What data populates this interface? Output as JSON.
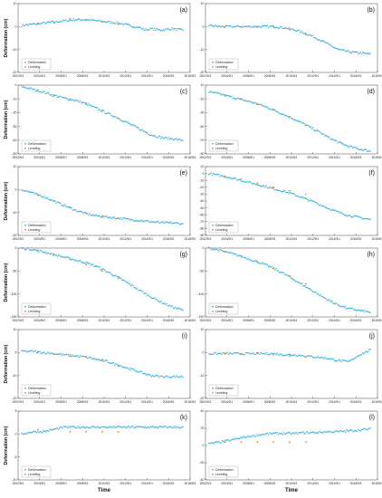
{
  "chart_data": [
    {
      "label": "(a)",
      "type": "scatter",
      "ylabel": "Deformation (cm)",
      "ylim": [
        -20,
        10
      ],
      "yticks": [
        10,
        0,
        -10,
        -20
      ],
      "xticks": [
        "2002/9/1",
        "2004/9/1",
        "2006/9/1",
        "2008/9/1",
        "2010/9/1",
        "2012/9/1",
        "2014/9/1",
        "2016/9/1",
        "2018/9/1"
      ],
      "legend": [
        "Deformation",
        "Leveling"
      ],
      "series": [
        {
          "name": "Deformation",
          "x": [
            2003.0,
            2004.0,
            2005.0,
            2006.0,
            2007.0,
            2008.0,
            2009.0,
            2010.0,
            2011.0,
            2012.0,
            2013.0,
            2014.0,
            2014.5,
            2015.0,
            2016.0,
            2017.0,
            2018.0
          ],
          "y": [
            0.5,
            1.0,
            1.5,
            2.0,
            2.5,
            3.0,
            3.0,
            2.5,
            2.0,
            1.5,
            0.5,
            -0.5,
            -1.5,
            -1.0,
            -1.5,
            -1.0,
            -1.5
          ]
        },
        {
          "name": "Leveling",
          "x": [
            2004.5,
            2006.0,
            2007.5,
            2009.0,
            2010.5,
            2012.0
          ],
          "y": [
            1.0,
            1.5,
            3.5,
            3.0,
            2.0,
            1.0
          ]
        }
      ]
    },
    {
      "label": "(b)",
      "type": "scatter",
      "ylabel": "",
      "ylim": [
        -20,
        10
      ],
      "yticks": [
        10,
        0,
        -10,
        -20
      ],
      "xticks": [
        "2002/9/1",
        "2004/9/1",
        "2006/9/1",
        "2008/9/1",
        "2010/9/1",
        "2012/9/1",
        "2014/9/1",
        "2016/9/1",
        "2018/9/1"
      ],
      "legend": [
        "Deformation",
        "Leveling"
      ],
      "series": [
        {
          "name": "Deformation",
          "x": [
            2003.0,
            2004.0,
            2005.0,
            2006.0,
            2007.0,
            2008.0,
            2009.0,
            2010.0,
            2011.0,
            2012.0,
            2013.0,
            2014.0,
            2015.0,
            2016.0,
            2017.0,
            2018.0
          ],
          "y": [
            0.5,
            0.0,
            0.0,
            0.0,
            0.0,
            0.0,
            0.0,
            -0.5,
            -1.5,
            -3.0,
            -5.0,
            -7.5,
            -10.0,
            -11.0,
            -11.5,
            -12.0
          ]
        },
        {
          "name": "Leveling",
          "x": [
            2004.5,
            2006.0,
            2007.5,
            2009.0,
            2010.5,
            2012.0
          ],
          "y": [
            0.0,
            0.0,
            0.0,
            0.0,
            -1.5,
            -3.5
          ]
        }
      ]
    },
    {
      "label": "(c)",
      "type": "scatter",
      "ylabel": "Deformation (cm)",
      "ylim": [
        -50,
        0
      ],
      "yticks": [
        0,
        -10,
        -20,
        -30,
        -40,
        -50
      ],
      "xticks": [
        "2002/9/1",
        "2004/9/1",
        "2006/9/1",
        "2008/9/1",
        "2010/9/1",
        "2012/9/1",
        "2014/9/1",
        "2016/9/1",
        "2018/9/1"
      ],
      "legend": [
        "Deformation",
        "Leveling"
      ],
      "series": [
        {
          "name": "Deformation",
          "x": [
            2003.0,
            2004.0,
            2005.0,
            2006.0,
            2007.0,
            2008.0,
            2009.0,
            2010.0,
            2011.0,
            2012.0,
            2013.0,
            2014.0,
            2015.0,
            2016.0,
            2017.0,
            2018.0
          ],
          "y": [
            -1.0,
            -3.0,
            -5.0,
            -7.5,
            -9.5,
            -11.0,
            -13.5,
            -17.0,
            -20.5,
            -24.0,
            -28.0,
            -32.0,
            -36.0,
            -38.0,
            -39.0,
            -40.0
          ]
        },
        {
          "name": "Leveling",
          "x": [
            2004.5,
            2006.0,
            2007.5,
            2009.0,
            2010.5,
            2012.0
          ],
          "y": [
            -4.0,
            -7.5,
            -10.0,
            -14.0,
            -18.0,
            -24.0
          ]
        }
      ]
    },
    {
      "label": "(d)",
      "type": "scatter",
      "ylabel": "",
      "ylim": [
        -90,
        10
      ],
      "yticks": [
        10,
        -10,
        -30,
        -50,
        -70,
        -90
      ],
      "xticks": [
        "2002/9/1",
        "2004/9/1",
        "2006/9/1",
        "2008/9/1",
        "2010/9/1",
        "2012/9/1",
        "2014/9/1",
        "2016/9/1",
        "2018/9/1"
      ],
      "legend": [
        "Deformation",
        "Leveling"
      ],
      "series": [
        {
          "name": "Deformation",
          "x": [
            2003.0,
            2004.0,
            2005.0,
            2006.0,
            2007.0,
            2008.0,
            2009.0,
            2010.0,
            2011.0,
            2012.0,
            2013.0,
            2014.0,
            2015.0,
            2016.0,
            2017.0,
            2018.0
          ],
          "y": [
            0.0,
            -3.0,
            -7.0,
            -11.0,
            -15.0,
            -20.0,
            -26.0,
            -33.0,
            -40.0,
            -48.0,
            -56.0,
            -65.0,
            -73.0,
            -79.0,
            -83.0,
            -86.0
          ]
        },
        {
          "name": "Leveling",
          "x": [
            2004.5,
            2006.0,
            2007.5,
            2009.0,
            2010.5,
            2012.0
          ],
          "y": [
            -5.0,
            -11.0,
            -17.0,
            -26.0,
            -36.0,
            -48.0
          ]
        }
      ]
    },
    {
      "label": "(e)",
      "type": "scatter",
      "ylabel": "Deformation (cm)",
      "ylim": [
        -20,
        10
      ],
      "yticks": [
        10,
        0,
        -10,
        -20
      ],
      "xticks": [
        "2002/9/1",
        "2004/9/1",
        "2006/9/1",
        "2008/9/1",
        "2010/9/1",
        "2012/9/1",
        "2014/9/1",
        "2016/9/1",
        "2018/9/1"
      ],
      "legend": [
        "Deformation",
        "Leveling"
      ],
      "series": [
        {
          "name": "Deformation",
          "x": [
            2003.0,
            2004.0,
            2005.0,
            2006.0,
            2007.0,
            2008.0,
            2009.0,
            2010.0,
            2011.0,
            2012.0,
            2013.0,
            2014.0,
            2015.0,
            2016.0,
            2017.0,
            2018.0
          ],
          "y": [
            0.0,
            -1.5,
            -3.0,
            -5.0,
            -7.0,
            -9.0,
            -10.5,
            -11.5,
            -12.0,
            -12.5,
            -13.0,
            -13.5,
            -14.0,
            -14.5,
            -14.5,
            -15.0
          ]
        },
        {
          "name": "Leveling",
          "x": [
            2004.5,
            2006.0,
            2007.5,
            2009.0,
            2010.5,
            2012.0
          ],
          "y": [
            -2.5,
            -5.0,
            -8.0,
            -10.5,
            -11.5,
            -12.5
          ]
        }
      ]
    },
    {
      "label": "(f)",
      "type": "scatter",
      "ylabel": "",
      "ylim": [
        -90,
        10
      ],
      "yticks": [
        10,
        0,
        -10,
        -20,
        -30,
        -40,
        -50,
        -60,
        -70,
        -80,
        -90
      ],
      "xticks": [
        "2002/9/1",
        "2004/9/1",
        "2006/9/1",
        "2008/9/1",
        "2010/9/1",
        "2012/9/1",
        "2014/9/1",
        "2016/9/1",
        "2018/9/1"
      ],
      "legend": [
        "Deformation",
        "Leveling"
      ],
      "series": [
        {
          "name": "Deformation",
          "x": [
            2003.0,
            2004.0,
            2005.0,
            2006.0,
            2007.0,
            2008.0,
            2009.0,
            2010.0,
            2011.0,
            2012.0,
            2013.0,
            2014.0,
            2015.0,
            2016.0,
            2017.0,
            2018.0
          ],
          "y": [
            0.0,
            -3.0,
            -6.0,
            -10.0,
            -14.0,
            -18.0,
            -22.0,
            -26.0,
            -31.0,
            -37.0,
            -43.0,
            -50.0,
            -56.0,
            -61.0,
            -64.0,
            -67.0
          ]
        },
        {
          "name": "Leveling",
          "x": [
            2004.5,
            2006.0,
            2007.5,
            2009.0,
            2010.5,
            2012.0
          ],
          "y": [
            -4.0,
            -8.0,
            -14.0,
            -20.0,
            -25.0,
            -30.0
          ]
        }
      ]
    },
    {
      "label": "(g)",
      "type": "scatter",
      "ylabel": "Deformation (cm)",
      "ylim": [
        -150,
        0
      ],
      "yticks": [
        0,
        -50,
        -100,
        -150
      ],
      "xticks": [
        "2002/9/1",
        "2004/9/1",
        "2006/9/1",
        "2008/9/1",
        "2010/9/1",
        "2012/9/1",
        "2014/9/1",
        "2016/9/1",
        "2018/9/1"
      ],
      "legend": [
        "Deformation",
        "Leveling"
      ],
      "series": [
        {
          "name": "Deformation",
          "x": [
            2003.0,
            2004.0,
            2005.0,
            2006.0,
            2007.0,
            2008.0,
            2009.0,
            2010.0,
            2011.0,
            2012.0,
            2013.0,
            2014.0,
            2015.0,
            2016.0,
            2017.0,
            2018.0
          ],
          "y": [
            0.0,
            -3.0,
            -8.0,
            -14.0,
            -20.0,
            -26.0,
            -32.0,
            -40.0,
            -52.0,
            -64.0,
            -78.0,
            -92.0,
            -106.0,
            -118.0,
            -128.0,
            -135.0
          ]
        },
        {
          "name": "Leveling",
          "x": [
            2004.5,
            2006.0,
            2007.5,
            2009.0,
            2010.5,
            2012.0
          ],
          "y": [
            -6.0,
            -14.0,
            -24.0,
            -36.0,
            -50.0,
            -66.0
          ]
        }
      ]
    },
    {
      "label": "(h)",
      "type": "scatter",
      "ylabel": "",
      "ylim": [
        -150,
        0
      ],
      "yticks": [
        0,
        -50,
        -100,
        -150
      ],
      "xticks": [
        "2002/9/1",
        "2004/9/1",
        "2006/9/1",
        "2008/9/1",
        "2010/9/1",
        "2012/9/1",
        "2014/9/1",
        "2016/9/1",
        "2018/9/1"
      ],
      "legend": [
        "Deformation",
        "Leveling"
      ],
      "series": [
        {
          "name": "Deformation",
          "x": [
            2003.0,
            2004.0,
            2005.0,
            2006.0,
            2007.0,
            2008.0,
            2009.0,
            2010.0,
            2011.0,
            2012.0,
            2013.0,
            2014.0,
            2015.0,
            2016.0,
            2017.0,
            2018.0
          ],
          "y": [
            0.0,
            -5.0,
            -11.0,
            -18.0,
            -26.0,
            -34.0,
            -44.0,
            -56.0,
            -70.0,
            -84.0,
            -98.0,
            -112.0,
            -124.0,
            -132.0,
            -136.0,
            -140.0
          ]
        },
        {
          "name": "Leveling",
          "x": [
            2004.5,
            2006.0,
            2007.5,
            2009.0,
            2010.5,
            2012.0
          ],
          "y": [
            -8.0,
            -18.0,
            -30.0,
            -44.0,
            -60.0,
            -78.0
          ]
        }
      ]
    },
    {
      "label": "(i)",
      "type": "scatter",
      "ylabel": "Deformation (cm)",
      "ylim": [
        -20,
        10
      ],
      "yticks": [
        10,
        0,
        -10,
        -20
      ],
      "xticks": [
        "2002/9/1",
        "2004/9/1",
        "2006/9/1",
        "2008/9/1",
        "2010/9/1",
        "2012/9/1",
        "2014/9/1",
        "2016/9/1",
        "2018/9/1"
      ],
      "legend": [
        "Deformation",
        "Leveling"
      ],
      "series": [
        {
          "name": "Deformation",
          "x": [
            2003.0,
            2004.0,
            2005.0,
            2006.0,
            2007.0,
            2008.0,
            2009.0,
            2010.0,
            2011.0,
            2012.0,
            2013.0,
            2014.0,
            2015.0,
            2016.0,
            2017.0,
            2018.0
          ],
          "y": [
            0.5,
            0.5,
            0.0,
            -0.5,
            -1.0,
            -1.5,
            -2.0,
            -3.0,
            -4.0,
            -5.5,
            -7.0,
            -8.5,
            -10.0,
            -10.5,
            -10.5,
            -10.5
          ]
        },
        {
          "name": "Leveling",
          "x": [
            2004.5,
            2006.0,
            2007.5,
            2009.0,
            2010.5,
            2012.0
          ],
          "y": [
            0.0,
            -0.5,
            -1.5,
            -2.0,
            -3.5,
            -5.5
          ]
        }
      ]
    },
    {
      "label": "(j)",
      "type": "scatter",
      "ylabel": "",
      "ylim": [
        -20,
        10
      ],
      "yticks": [
        10,
        0,
        -10,
        -20
      ],
      "xticks": [
        "2002/9/1",
        "2004/9/1",
        "2006/9/1",
        "2008/9/1",
        "2010/9/1",
        "2012/9/1",
        "2014/9/1",
        "2016/9/1",
        "2018/9/1"
      ],
      "legend": [
        "Deformation",
        "Leveling"
      ],
      "series": [
        {
          "name": "Deformation",
          "x": [
            2003.0,
            2004.0,
            2005.0,
            2006.0,
            2007.0,
            2008.0,
            2009.0,
            2010.0,
            2011.0,
            2012.0,
            2013.0,
            2014.0,
            2015.0,
            2016.0,
            2017.0,
            2018.0
          ],
          "y": [
            -0.5,
            -0.5,
            -0.5,
            -0.5,
            -0.5,
            -0.5,
            -0.5,
            -1.0,
            -1.0,
            -1.5,
            -2.0,
            -2.5,
            -3.5,
            -4.0,
            -1.0,
            1.0
          ]
        },
        {
          "name": "Leveling",
          "x": [
            2004.5,
            2006.0,
            2007.5,
            2009.0,
            2010.5,
            2012.0
          ],
          "y": [
            -0.5,
            -0.5,
            -0.5,
            -1.0,
            -1.5,
            -2.0
          ]
        }
      ]
    },
    {
      "label": "(k)",
      "type": "scatter",
      "ylabel": "Deformation (cm)",
      "ylim": [
        -10,
        5
      ],
      "yticks": [
        5,
        0,
        -5,
        -10
      ],
      "xticks": [
        "2002/9/1",
        "2004/9/1",
        "2006/9/1",
        "2008/9/1",
        "2010/9/1",
        "2012/9/1",
        "2014/9/1",
        "2016/9/1",
        "2018/9/1"
      ],
      "legend": [
        "Deformation",
        "Leveling"
      ],
      "series": [
        {
          "name": "Deformation",
          "x": [
            2003.0,
            2004.0,
            2005.0,
            2006.0,
            2007.0,
            2008.0,
            2009.0,
            2010.0,
            2011.0,
            2012.0,
            2013.0,
            2014.0,
            2015.0,
            2016.0,
            2017.0,
            2018.0
          ],
          "y": [
            0.0,
            0.5,
            0.5,
            1.0,
            1.5,
            1.5,
            1.5,
            1.5,
            1.5,
            1.5,
            1.5,
            1.5,
            1.5,
            1.5,
            1.5,
            1.5
          ]
        },
        {
          "name": "Leveling",
          "x": [
            2004.5,
            2006.0,
            2007.5,
            2009.0,
            2010.5,
            2012.0
          ],
          "y": [
            1.0,
            1.0,
            0.5,
            0.5,
            0.5,
            0.5
          ]
        }
      ]
    },
    {
      "label": "(l)",
      "type": "scatter",
      "ylabel": "",
      "ylim": [
        -40,
        40
      ],
      "yticks": [
        40,
        20,
        0,
        -20,
        -40
      ],
      "xticks": [
        "2002/9/1",
        "2004/9/1",
        "2006/9/1",
        "2008/9/1",
        "2010/9/1",
        "2012/9/1",
        "2014/9/1",
        "2016/9/1",
        "2018/9/1"
      ],
      "legend": [
        "Deformation",
        "Leveling"
      ],
      "series": [
        {
          "name": "Deformation",
          "x": [
            2003.0,
            2004.0,
            2005.0,
            2006.0,
            2007.0,
            2008.0,
            2009.0,
            2010.0,
            2011.0,
            2012.0,
            2013.0,
            2014.0,
            2015.0,
            2016.0,
            2017.0,
            2018.0
          ],
          "y": [
            2.0,
            4.0,
            6.0,
            9.0,
            11.0,
            13.0,
            14.0,
            14.0,
            14.0,
            15.0,
            15.0,
            16.0,
            16.0,
            17.0,
            18.0,
            19.0
          ]
        },
        {
          "name": "Leveling",
          "x": [
            2004.5,
            2006.0,
            2007.5,
            2009.0,
            2010.5,
            2012.0
          ],
          "y": [
            4.0,
            4.0,
            4.0,
            4.0,
            4.0,
            4.0
          ]
        }
      ]
    }
  ],
  "xlabel": "Time",
  "colors": {
    "deformation": "#3fb6e0",
    "leveling": "#e8862e"
  }
}
